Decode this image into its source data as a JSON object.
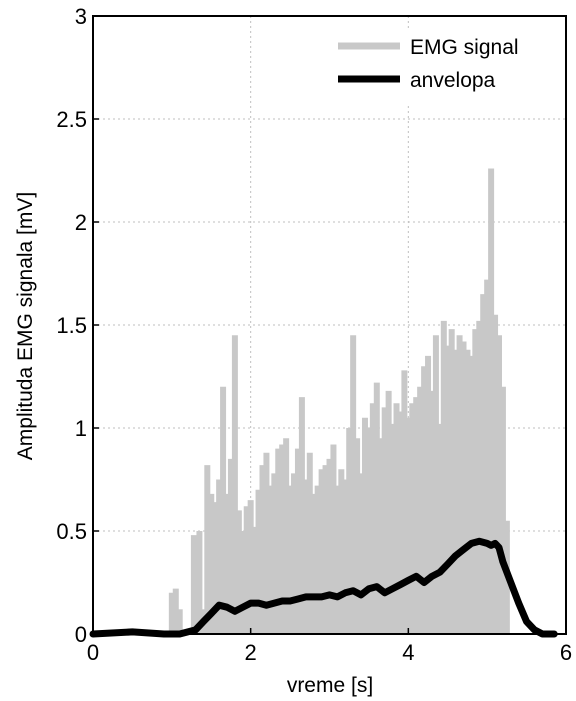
{
  "chart_data": {
    "type": "line",
    "title": "",
    "xlabel": "vreme [s]",
    "ylabel": "Amplituda EMG signala [mV]",
    "xlim": [
      0,
      6
    ],
    "ylim": [
      0,
      3
    ],
    "xticks": [
      "0",
      "2",
      "4",
      "6"
    ],
    "yticks": [
      "0",
      "0.5",
      "1",
      "1.5",
      "2",
      "2.5",
      "3"
    ],
    "grid": true,
    "legend_position": "top-right",
    "colors": {
      "emg": "#c8c8c8",
      "envelope": "#000000",
      "grid": "#bfbfbf"
    },
    "series": [
      {
        "name": "EMG signal",
        "style": "vertical-spikes",
        "x": [
          1.0,
          1.05,
          1.1,
          1.28,
          1.35,
          1.45,
          1.5,
          1.55,
          1.6,
          1.65,
          1.7,
          1.75,
          1.8,
          1.85,
          1.9,
          1.95,
          2.0,
          2.05,
          2.1,
          2.15,
          2.2,
          2.25,
          2.3,
          2.35,
          2.4,
          2.45,
          2.5,
          2.55,
          2.6,
          2.65,
          2.7,
          2.75,
          2.8,
          2.85,
          2.9,
          2.95,
          3.0,
          3.05,
          3.1,
          3.15,
          3.2,
          3.25,
          3.3,
          3.35,
          3.4,
          3.45,
          3.5,
          3.55,
          3.6,
          3.65,
          3.7,
          3.75,
          3.8,
          3.85,
          3.9,
          3.95,
          4.0,
          4.05,
          4.1,
          4.15,
          4.2,
          4.25,
          4.3,
          4.35,
          4.4,
          4.45,
          4.5,
          4.55,
          4.6,
          4.65,
          4.7,
          4.75,
          4.8,
          4.85,
          4.9,
          4.95,
          5.0,
          5.05,
          5.1,
          5.15,
          5.2,
          5.25
        ],
        "values": [
          0.2,
          0.22,
          0.12,
          0.48,
          0.5,
          0.82,
          0.68,
          0.64,
          0.75,
          1.2,
          0.68,
          0.85,
          1.45,
          0.6,
          0.5,
          0.62,
          0.65,
          0.52,
          0.7,
          0.82,
          0.88,
          0.72,
          0.78,
          0.9,
          0.92,
          0.95,
          0.72,
          0.78,
          0.9,
          1.15,
          0.75,
          0.88,
          0.68,
          0.72,
          0.8,
          0.82,
          0.85,
          0.92,
          0.72,
          0.8,
          0.75,
          1.0,
          1.45,
          0.95,
          0.78,
          1.05,
          1.0,
          1.12,
          1.22,
          0.95,
          1.1,
          1.18,
          1.02,
          1.12,
          1.08,
          1.28,
          1.05,
          1.12,
          1.15,
          1.2,
          1.3,
          1.35,
          1.18,
          1.45,
          1.02,
          1.52,
          1.4,
          1.48,
          1.38,
          1.45,
          1.42,
          1.38,
          1.35,
          1.48,
          1.52,
          1.65,
          1.72,
          2.26,
          1.55,
          1.45,
          1.2,
          0.55
        ]
      },
      {
        "name": "anvelopa",
        "style": "thick-line",
        "x": [
          0.0,
          0.5,
          0.9,
          1.1,
          1.3,
          1.4,
          1.5,
          1.6,
          1.7,
          1.8,
          1.9,
          2.0,
          2.1,
          2.2,
          2.3,
          2.4,
          2.5,
          2.6,
          2.7,
          2.8,
          2.9,
          3.0,
          3.1,
          3.2,
          3.3,
          3.4,
          3.5,
          3.6,
          3.7,
          3.8,
          3.9,
          4.0,
          4.1,
          4.2,
          4.3,
          4.4,
          4.5,
          4.6,
          4.7,
          4.8,
          4.9,
          5.0,
          5.05,
          5.1,
          5.15,
          5.2,
          5.3,
          5.4,
          5.5,
          5.6,
          5.7,
          5.8,
          5.85
        ],
        "values": [
          0.0,
          0.01,
          0.0,
          0.0,
          0.02,
          0.06,
          0.1,
          0.14,
          0.13,
          0.11,
          0.13,
          0.15,
          0.15,
          0.14,
          0.15,
          0.16,
          0.16,
          0.17,
          0.18,
          0.18,
          0.18,
          0.19,
          0.18,
          0.2,
          0.21,
          0.19,
          0.22,
          0.23,
          0.2,
          0.22,
          0.24,
          0.26,
          0.28,
          0.25,
          0.28,
          0.3,
          0.34,
          0.38,
          0.41,
          0.44,
          0.45,
          0.44,
          0.43,
          0.44,
          0.42,
          0.35,
          0.25,
          0.15,
          0.06,
          0.02,
          0.0,
          0.0,
          0.0
        ]
      }
    ]
  }
}
